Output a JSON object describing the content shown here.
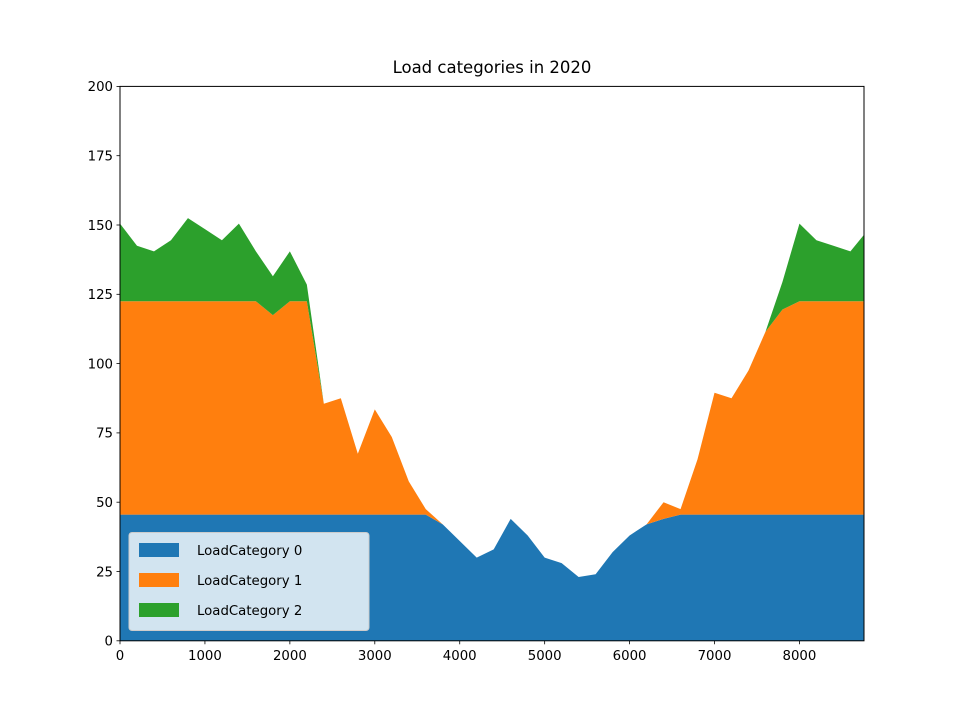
{
  "chart_data": {
    "type": "area",
    "stacked": true,
    "title": "Load categories in 2020",
    "xlabel": "",
    "ylabel": "",
    "xlim": [
      0,
      8760
    ],
    "ylim": [
      0,
      200
    ],
    "x_ticks": [
      0,
      1000,
      2000,
      3000,
      4000,
      5000,
      6000,
      7000,
      8000
    ],
    "y_ticks": [
      0,
      25,
      50,
      75,
      100,
      125,
      150,
      175,
      200
    ],
    "grid": false,
    "legend_position": "lower-left",
    "x": [
      0,
      200,
      400,
      600,
      800,
      1000,
      1200,
      1400,
      1600,
      1800,
      2000,
      2200,
      2400,
      2600,
      2800,
      3000,
      3200,
      3400,
      3600,
      3800,
      4000,
      4200,
      4400,
      4600,
      4800,
      5000,
      5200,
      5400,
      5600,
      5800,
      6000,
      6200,
      6400,
      6600,
      6800,
      7000,
      7200,
      7400,
      7600,
      7800,
      8000,
      8200,
      8400,
      8600,
      8760
    ],
    "series": [
      {
        "name": "LoadCategory 0",
        "color": "#1f77b4",
        "values": [
          45.5,
          45.5,
          45.5,
          45.5,
          45.5,
          45.5,
          45.5,
          45.5,
          45.5,
          45.5,
          45.5,
          45.5,
          45.5,
          45.5,
          45.5,
          45.5,
          45.5,
          45.5,
          45.5,
          42,
          36,
          30,
          33,
          44,
          38,
          30,
          28,
          23,
          24,
          32,
          38,
          42,
          44,
          45.5,
          45.5,
          45.5,
          45.5,
          45.5,
          45.5,
          45.5,
          45.5,
          45.5,
          45.5,
          45.5,
          45.5
        ]
      },
      {
        "name": "LoadCategory 1",
        "color": "#ff7f0e",
        "values": [
          77,
          77,
          77,
          77,
          77,
          77,
          77,
          77,
          77,
          72,
          77,
          77,
          40,
          42,
          22,
          38,
          28,
          12,
          2,
          0,
          0,
          0,
          0,
          0,
          0,
          0,
          0,
          0,
          0,
          0,
          0,
          0,
          6,
          2,
          20,
          44,
          42,
          52,
          66,
          74,
          77,
          77,
          77,
          77,
          77
        ]
      },
      {
        "name": "LoadCategory 2",
        "color": "#2ca02c",
        "values": [
          28,
          20,
          18,
          22,
          30,
          26,
          22,
          28,
          18,
          14,
          18,
          6,
          0,
          0,
          0,
          0,
          0,
          0,
          0,
          0,
          0,
          0,
          0,
          0,
          0,
          0,
          0,
          0,
          0,
          0,
          0,
          0,
          0,
          0,
          0,
          0,
          0,
          0,
          0,
          10,
          28,
          22,
          20,
          18,
          24
        ]
      }
    ]
  }
}
